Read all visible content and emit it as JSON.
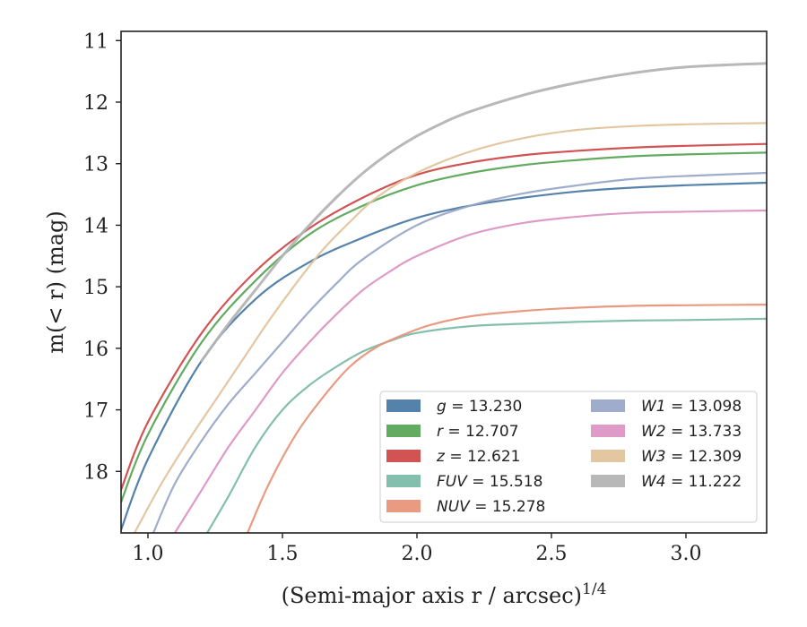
{
  "chart_data": {
    "type": "line",
    "xlabel": "(Semi-major axis r / arcsec)",
    "xlabel_sup": "1/4",
    "ylabel": "m(< r) (mag)",
    "xlim": [
      0.9,
      3.3
    ],
    "ylim": [
      19,
      10.85
    ],
    "y_inverted": true,
    "grid": false,
    "legend_position": "lower-right",
    "x_ticks": [
      1.0,
      1.5,
      2.0,
      2.5,
      3.0
    ],
    "x_tick_labels": [
      "1.0",
      "1.5",
      "2.0",
      "2.5",
      "3.0"
    ],
    "y_ticks": [
      11,
      12,
      13,
      14,
      15,
      16,
      17,
      18
    ],
    "y_tick_labels": [
      "11",
      "12",
      "13",
      "14",
      "15",
      "16",
      "17",
      "18"
    ],
    "series": [
      {
        "name": "g",
        "label": "g = 13.230",
        "color": "#4c7ba6",
        "x": [
          0.9,
          1.0,
          1.2,
          1.4,
          1.6,
          1.8,
          2.0,
          2.2,
          2.4,
          2.6,
          2.8,
          3.0,
          3.3
        ],
        "y": [
          18.95,
          17.8,
          16.2,
          15.2,
          14.6,
          14.2,
          13.88,
          13.68,
          13.55,
          13.45,
          13.39,
          13.35,
          13.31
        ]
      },
      {
        "name": "r",
        "label": "r = 12.707",
        "color": "#5aa658",
        "x": [
          0.9,
          1.0,
          1.2,
          1.4,
          1.6,
          1.8,
          2.0,
          2.2,
          2.4,
          2.6,
          2.8,
          3.0,
          3.3
        ],
        "y": [
          18.5,
          17.4,
          15.9,
          14.9,
          14.15,
          13.68,
          13.35,
          13.15,
          13.02,
          12.94,
          12.88,
          12.85,
          12.82
        ]
      },
      {
        "name": "z",
        "label": "z = 12.621",
        "color": "#d04a4a",
        "x": [
          0.9,
          1.0,
          1.2,
          1.4,
          1.6,
          1.8,
          2.0,
          2.2,
          2.4,
          2.6,
          2.8,
          3.0,
          3.3
        ],
        "y": [
          18.3,
          17.2,
          15.75,
          14.75,
          14.05,
          13.55,
          13.18,
          12.98,
          12.86,
          12.79,
          12.74,
          12.71,
          12.68
        ]
      },
      {
        "name": "FUV",
        "label": "FUV = 15.518",
        "color": "#7bbca8",
        "x": [
          1.22,
          1.3,
          1.4,
          1.5,
          1.6,
          1.7,
          1.8,
          1.9,
          2.0,
          2.2,
          2.4,
          2.6,
          2.8,
          3.0,
          3.3
        ],
        "y": [
          19.0,
          18.4,
          17.6,
          17.0,
          16.6,
          16.3,
          16.05,
          15.88,
          15.75,
          15.64,
          15.6,
          15.57,
          15.55,
          15.54,
          15.52
        ]
      },
      {
        "name": "NUV",
        "label": "NUV = 15.278",
        "color": "#e8967a",
        "x": [
          1.37,
          1.45,
          1.55,
          1.65,
          1.75,
          1.85,
          1.95,
          2.05,
          2.2,
          2.4,
          2.6,
          2.8,
          3.0,
          3.3
        ],
        "y": [
          19.0,
          18.2,
          17.4,
          16.8,
          16.3,
          15.98,
          15.78,
          15.62,
          15.48,
          15.39,
          15.34,
          15.31,
          15.3,
          15.29
        ]
      },
      {
        "name": "W1",
        "label": "W1 = 13.098",
        "color": "#9aa8c8",
        "x": [
          1.02,
          1.1,
          1.2,
          1.3,
          1.4,
          1.5,
          1.6,
          1.7,
          1.8,
          2.0,
          2.2,
          2.4,
          2.6,
          2.8,
          3.0,
          3.3
        ],
        "y": [
          19.0,
          18.2,
          17.5,
          16.9,
          16.4,
          15.9,
          15.4,
          14.95,
          14.55,
          14.0,
          13.68,
          13.48,
          13.35,
          13.25,
          13.2,
          13.15
        ]
      },
      {
        "name": "W2",
        "label": "W2 = 13.733",
        "color": "#dc96c4",
        "x": [
          1.1,
          1.2,
          1.3,
          1.4,
          1.5,
          1.6,
          1.7,
          1.8,
          1.9,
          2.0,
          2.2,
          2.4,
          2.6,
          2.8,
          3.0,
          3.3
        ],
        "y": [
          19.0,
          18.3,
          17.6,
          17.0,
          16.4,
          15.9,
          15.45,
          15.05,
          14.75,
          14.5,
          14.15,
          13.96,
          13.86,
          13.8,
          13.78,
          13.76
        ]
      },
      {
        "name": "W3",
        "label": "W3 = 12.309",
        "color": "#e2c49c",
        "x": [
          0.95,
          1.05,
          1.15,
          1.25,
          1.35,
          1.45,
          1.55,
          1.65,
          1.75,
          1.85,
          2.0,
          2.2,
          2.4,
          2.6,
          2.8,
          3.0,
          3.3
        ],
        "y": [
          19.0,
          18.2,
          17.5,
          16.85,
          16.2,
          15.55,
          14.95,
          14.4,
          13.95,
          13.55,
          13.15,
          12.8,
          12.58,
          12.45,
          12.39,
          12.36,
          12.34
        ]
      },
      {
        "name": "W4",
        "label": "W4 = 11.222",
        "color": "#b4b4b4",
        "x": [
          1.2,
          1.3,
          1.4,
          1.5,
          1.6,
          1.7,
          1.8,
          1.9,
          2.0,
          2.1,
          2.2,
          2.4,
          2.6,
          2.8,
          3.0,
          3.3
        ],
        "y": [
          16.2,
          15.6,
          15.05,
          14.5,
          14.0,
          13.55,
          13.15,
          12.82,
          12.55,
          12.33,
          12.15,
          11.88,
          11.68,
          11.53,
          11.43,
          11.37
        ]
      }
    ]
  }
}
